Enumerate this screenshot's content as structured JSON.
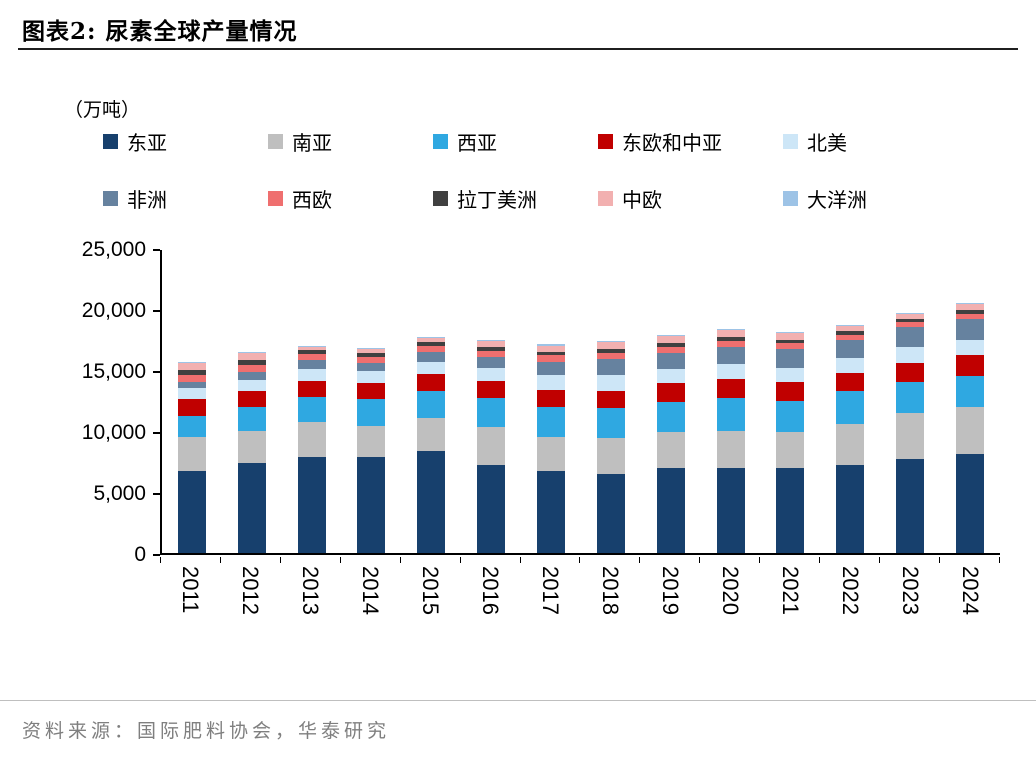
{
  "title": "图表2:  尿素全球产量情况",
  "unit_label": "（万吨）",
  "source": "资料来源：国际肥料协会，华泰研究",
  "chart_data": {
    "type": "bar",
    "stacked": true,
    "title": "尿素全球产量情况",
    "unit": "万吨",
    "xlabel": "",
    "ylabel": "万吨",
    "ylim": [
      0,
      25000
    ],
    "yticks": [
      "25,000",
      "20,000",
      "15,000",
      "10,000",
      "5,000",
      "0"
    ],
    "grid": false,
    "legend_position": "top",
    "categories": [
      "2011",
      "2012",
      "2013",
      "2014",
      "2015",
      "2016",
      "2017",
      "2018",
      "2019",
      "2020",
      "2021",
      "2022",
      "2023",
      "2024"
    ],
    "series": [
      {
        "name": "东亚",
        "color": "#17406D",
        "values": [
          6700,
          7400,
          7900,
          7900,
          8400,
          7200,
          6700,
          6500,
          7000,
          7000,
          7000,
          7200,
          7700,
          8100
        ]
      },
      {
        "name": "南亚",
        "color": "#BFBFBF",
        "values": [
          2800,
          2600,
          2800,
          2500,
          2700,
          3100,
          2800,
          2900,
          2900,
          3000,
          2900,
          3400,
          3800,
          3900
        ]
      },
      {
        "name": "西亚",
        "color": "#2FA8E1",
        "values": [
          1700,
          2000,
          2100,
          2200,
          2200,
          2400,
          2500,
          2500,
          2500,
          2700,
          2600,
          2700,
          2500,
          2500
        ]
      },
      {
        "name": "东欧和中亚",
        "color": "#C00000",
        "values": [
          1400,
          1300,
          1300,
          1300,
          1400,
          1400,
          1400,
          1400,
          1500,
          1600,
          1500,
          1500,
          1600,
          1700
        ]
      },
      {
        "name": "北美",
        "color": "#CDE6F7",
        "values": [
          900,
          900,
          1000,
          1000,
          1000,
          1100,
          1200,
          1300,
          1200,
          1200,
          1200,
          1200,
          1300,
          1300
        ]
      },
      {
        "name": "非洲",
        "color": "#66829F",
        "values": [
          500,
          600,
          700,
          700,
          800,
          900,
          1100,
          1300,
          1300,
          1400,
          1500,
          1500,
          1600,
          1700
        ]
      },
      {
        "name": "西欧",
        "color": "#EF6F6F",
        "values": [
          600,
          600,
          500,
          500,
          500,
          500,
          500,
          500,
          500,
          500,
          500,
          400,
          400,
          400
        ]
      },
      {
        "name": "拉丁美洲",
        "color": "#404040",
        "values": [
          400,
          400,
          300,
          300,
          300,
          300,
          300,
          300,
          300,
          300,
          300,
          300,
          300,
          300
        ]
      },
      {
        "name": "中欧",
        "color": "#F2B0B0",
        "values": [
          600,
          600,
          300,
          300,
          300,
          500,
          500,
          600,
          600,
          600,
          500,
          400,
          400,
          500
        ]
      },
      {
        "name": "大洋洲",
        "color": "#9DC3E6",
        "values": [
          100,
          100,
          100,
          100,
          100,
          100,
          100,
          100,
          100,
          100,
          100,
          100,
          100,
          100
        ]
      }
    ]
  }
}
